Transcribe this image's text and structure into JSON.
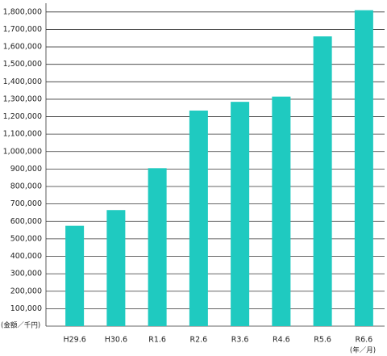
{
  "chart_data": {
    "type": "bar",
    "y_label": "(金額／千円)",
    "x_label": "(年／月)",
    "categories": [
      "H29.6",
      "H30.6",
      "R1.6",
      "R2.6",
      "R3.6",
      "R4.6",
      "R5.6",
      "R6.6"
    ],
    "values": [
      575000,
      665000,
      905000,
      1235000,
      1285000,
      1315000,
      1660000,
      1810000
    ],
    "color": "#1fcac0",
    "ylim": [
      0,
      1850000
    ],
    "yticks": [
      {
        "value": 100000,
        "label": "100,000"
      },
      {
        "value": 200000,
        "label": "200,000"
      },
      {
        "value": 300000,
        "label": "300,000"
      },
      {
        "value": 400000,
        "label": "400,000"
      },
      {
        "value": 500000,
        "label": "500,000"
      },
      {
        "value": 600000,
        "label": "600,000"
      },
      {
        "value": 700000,
        "label": "700,000"
      },
      {
        "value": 800000,
        "label": "800,000"
      },
      {
        "value": 900000,
        "label": "900,000"
      },
      {
        "value": 1000000,
        "label": "1,000,000"
      },
      {
        "value": 1100000,
        "label": "1,100,000"
      },
      {
        "value": 1200000,
        "label": "1,200,000"
      },
      {
        "value": 1300000,
        "label": "1,300,000"
      },
      {
        "value": 1400000,
        "label": "1,400,000"
      },
      {
        "value": 1500000,
        "label": "1,500,000"
      },
      {
        "value": 1600000,
        "label": "1,600,000"
      },
      {
        "value": 1700000,
        "label": "1,700,000"
      },
      {
        "value": 1800000,
        "label": "1,800,000"
      }
    ],
    "grid": true
  }
}
